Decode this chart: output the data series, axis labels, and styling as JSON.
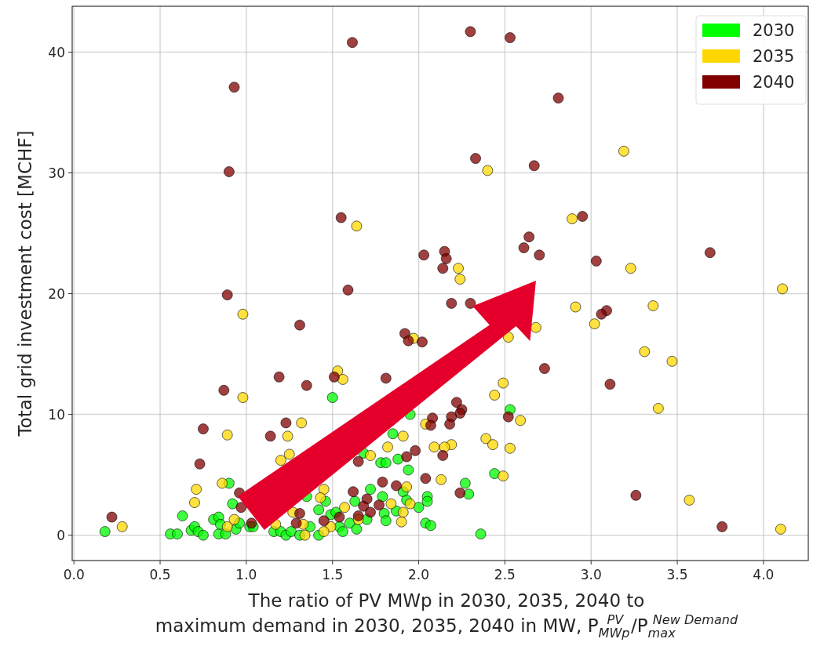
{
  "chart_data": {
    "type": "scatter",
    "xlabel": "The ratio of PV MWp in 2030, 2035, 2040 to\nmaximum demand in 2030, 2035, 2040 in MW, P$_{MWp}$$^{PV}$/P$_{max}$$^{New Demand}$",
    "ylabel": "Total grid investment cost [MCHF]",
    "xlim": [
      -0.01,
      4.26
    ],
    "ylim": [
      -2.1,
      43.8
    ],
    "xticks": [
      {
        "value": 0,
        "label": "0.0"
      },
      0.5,
      {
        "value": 1,
        "label": "1.0"
      },
      1.5,
      {
        "value": 2,
        "label": "2.0"
      },
      2.5,
      {
        "value": 3,
        "label": "3.0"
      },
      3.5,
      {
        "value": 4,
        "label": "4.0"
      }
    ],
    "yticks": [
      0,
      10,
      20,
      30,
      40
    ],
    "grid": true,
    "legend": "top right",
    "marker": "circle",
    "series": [
      {
        "name": "2030",
        "color": "#00ff00",
        "x": [
          0.18,
          0.56,
          0.6,
          0.63,
          0.68,
          0.7,
          0.72,
          0.75,
          0.81,
          0.84,
          0.84,
          0.88,
          0.85,
          0.9,
          0.92,
          0.94,
          0.96,
          1.02,
          1.04,
          1.16,
          1.2,
          1.23,
          1.26,
          1.31,
          1.35,
          1.37,
          1.42,
          1.42,
          1.46,
          1.49,
          1.5,
          1.52,
          1.54,
          1.56,
          1.6,
          1.63,
          1.64,
          1.7,
          1.72,
          1.79,
          1.8,
          1.81,
          1.85,
          1.78,
          1.81,
          1.88,
          1.94,
          1.91,
          1.93,
          1.87,
          2.0,
          2.05,
          2.05,
          2.04,
          2.07,
          1.95,
          1.68,
          2.53,
          2.44,
          2.27,
          2.29,
          2.36
        ],
        "values": [
          0.3,
          0.1,
          0.1,
          1.6,
          0.4,
          0.7,
          0.3,
          0.0,
          1.3,
          1.5,
          0.1,
          0.1,
          0.9,
          4.3,
          2.6,
          0.5,
          1.0,
          0.7,
          0.7,
          0.3,
          0.3,
          0.0,
          0.3,
          0.0,
          3.2,
          0.7,
          2.1,
          0.0,
          2.8,
          1.7,
          11.4,
          1.9,
          0.7,
          0.3,
          1.0,
          2.8,
          0.5,
          1.3,
          3.8,
          3.2,
          1.8,
          1.2,
          8.4,
          6.0,
          6.0,
          6.3,
          5.4,
          3.6,
          2.9,
          2.0,
          2.3,
          3.2,
          2.8,
          1.0,
          0.8,
          10.0,
          6.8,
          10.4,
          5.1,
          4.3,
          3.4,
          0.1
        ]
      },
      {
        "name": "2035",
        "color": "#ffd700",
        "x": [
          1.64,
          2.23,
          2.24,
          0.98,
          2.4,
          3.19,
          2.89,
          3.23,
          4.11,
          2.91,
          3.36,
          3.02,
          2.68,
          2.52,
          3.31,
          3.47,
          2.49,
          2.44,
          3.39,
          2.59,
          2.39,
          2.43,
          2.53,
          2.19,
          2.15,
          2.49,
          2.13,
          3.57,
          4.1,
          0.98,
          1.53,
          1.56,
          1.97,
          0.89,
          1.32,
          1.24,
          2.04,
          1.91,
          1.82,
          2.09,
          1.72,
          1.93,
          0.86,
          0.71,
          0.7,
          0.28,
          1.45,
          1.43,
          1.57,
          1.95,
          1.91,
          1.9,
          1.84,
          1.49,
          1.45,
          1.33,
          1.34,
          0.89,
          0.93,
          1.17,
          1.27,
          1.65,
          1.2,
          1.25
        ],
        "values": [
          25.6,
          22.1,
          21.2,
          18.3,
          30.2,
          31.8,
          26.2,
          22.1,
          20.4,
          18.9,
          19.0,
          17.5,
          17.2,
          16.4,
          15.2,
          14.4,
          12.6,
          11.6,
          10.5,
          9.5,
          8.0,
          7.5,
          7.2,
          7.5,
          7.3,
          4.9,
          4.6,
          2.9,
          0.5,
          11.4,
          13.6,
          12.9,
          16.3,
          8.3,
          9.3,
          8.2,
          9.2,
          8.2,
          7.3,
          7.3,
          6.6,
          4.0,
          4.3,
          3.8,
          2.7,
          0.7,
          3.8,
          3.1,
          2.3,
          2.6,
          1.9,
          1.1,
          2.6,
          0.7,
          0.3,
          0.9,
          0.0,
          0.7,
          1.3,
          0.9,
          1.9,
          1.3,
          6.2,
          6.7
        ]
      },
      {
        "name": "2040",
        "color": "#800000",
        "x": [
          1.615,
          0.93,
          0.9,
          1.55,
          2.03,
          2.15,
          2.16,
          2.14,
          0.89,
          1.59,
          2.19,
          1.31,
          2.3,
          2.53,
          2.81,
          2.33,
          2.67,
          2.95,
          2.64,
          2.61,
          2.7,
          3.03,
          3.69,
          2.3,
          3.09,
          3.06,
          2.73,
          3.11,
          2.22,
          2.25,
          2.24,
          2.19,
          2.18,
          2.52,
          2.14,
          2.24,
          3.26,
          3.76,
          0.22,
          1.19,
          1.35,
          0.87,
          1.51,
          1.92,
          1.94,
          2.02,
          0.75,
          1.23,
          1.14,
          0.73,
          1.65,
          2.08,
          2.07,
          1.98,
          1.93,
          1.79,
          1.87,
          2.04,
          1.62,
          0.96,
          0.97,
          1.7,
          1.68,
          1.77,
          1.72,
          1.31,
          1.54,
          1.45,
          1.29,
          1.03,
          1.65,
          1.81
        ],
        "values": [
          40.8,
          37.1,
          30.1,
          26.3,
          23.2,
          23.5,
          22.9,
          22.1,
          19.9,
          20.3,
          19.2,
          17.4,
          41.7,
          41.2,
          36.2,
          31.2,
          30.6,
          26.4,
          24.7,
          23.8,
          23.2,
          22.7,
          23.4,
          19.2,
          18.6,
          18.3,
          13.8,
          12.5,
          11.0,
          10.4,
          10.1,
          9.8,
          9.2,
          9.8,
          6.6,
          3.5,
          3.3,
          0.7,
          1.5,
          13.1,
          12.4,
          12.0,
          13.1,
          16.7,
          16.1,
          16.0,
          8.8,
          9.3,
          8.2,
          5.9,
          6.1,
          9.7,
          9.1,
          7.0,
          6.5,
          4.4,
          4.1,
          4.7,
          3.6,
          3.5,
          2.3,
          3.0,
          2.4,
          2.5,
          1.9,
          1.8,
          1.5,
          1.2,
          1.0,
          1.0,
          1.6,
          13.0
        ]
      }
    ]
  }
}
